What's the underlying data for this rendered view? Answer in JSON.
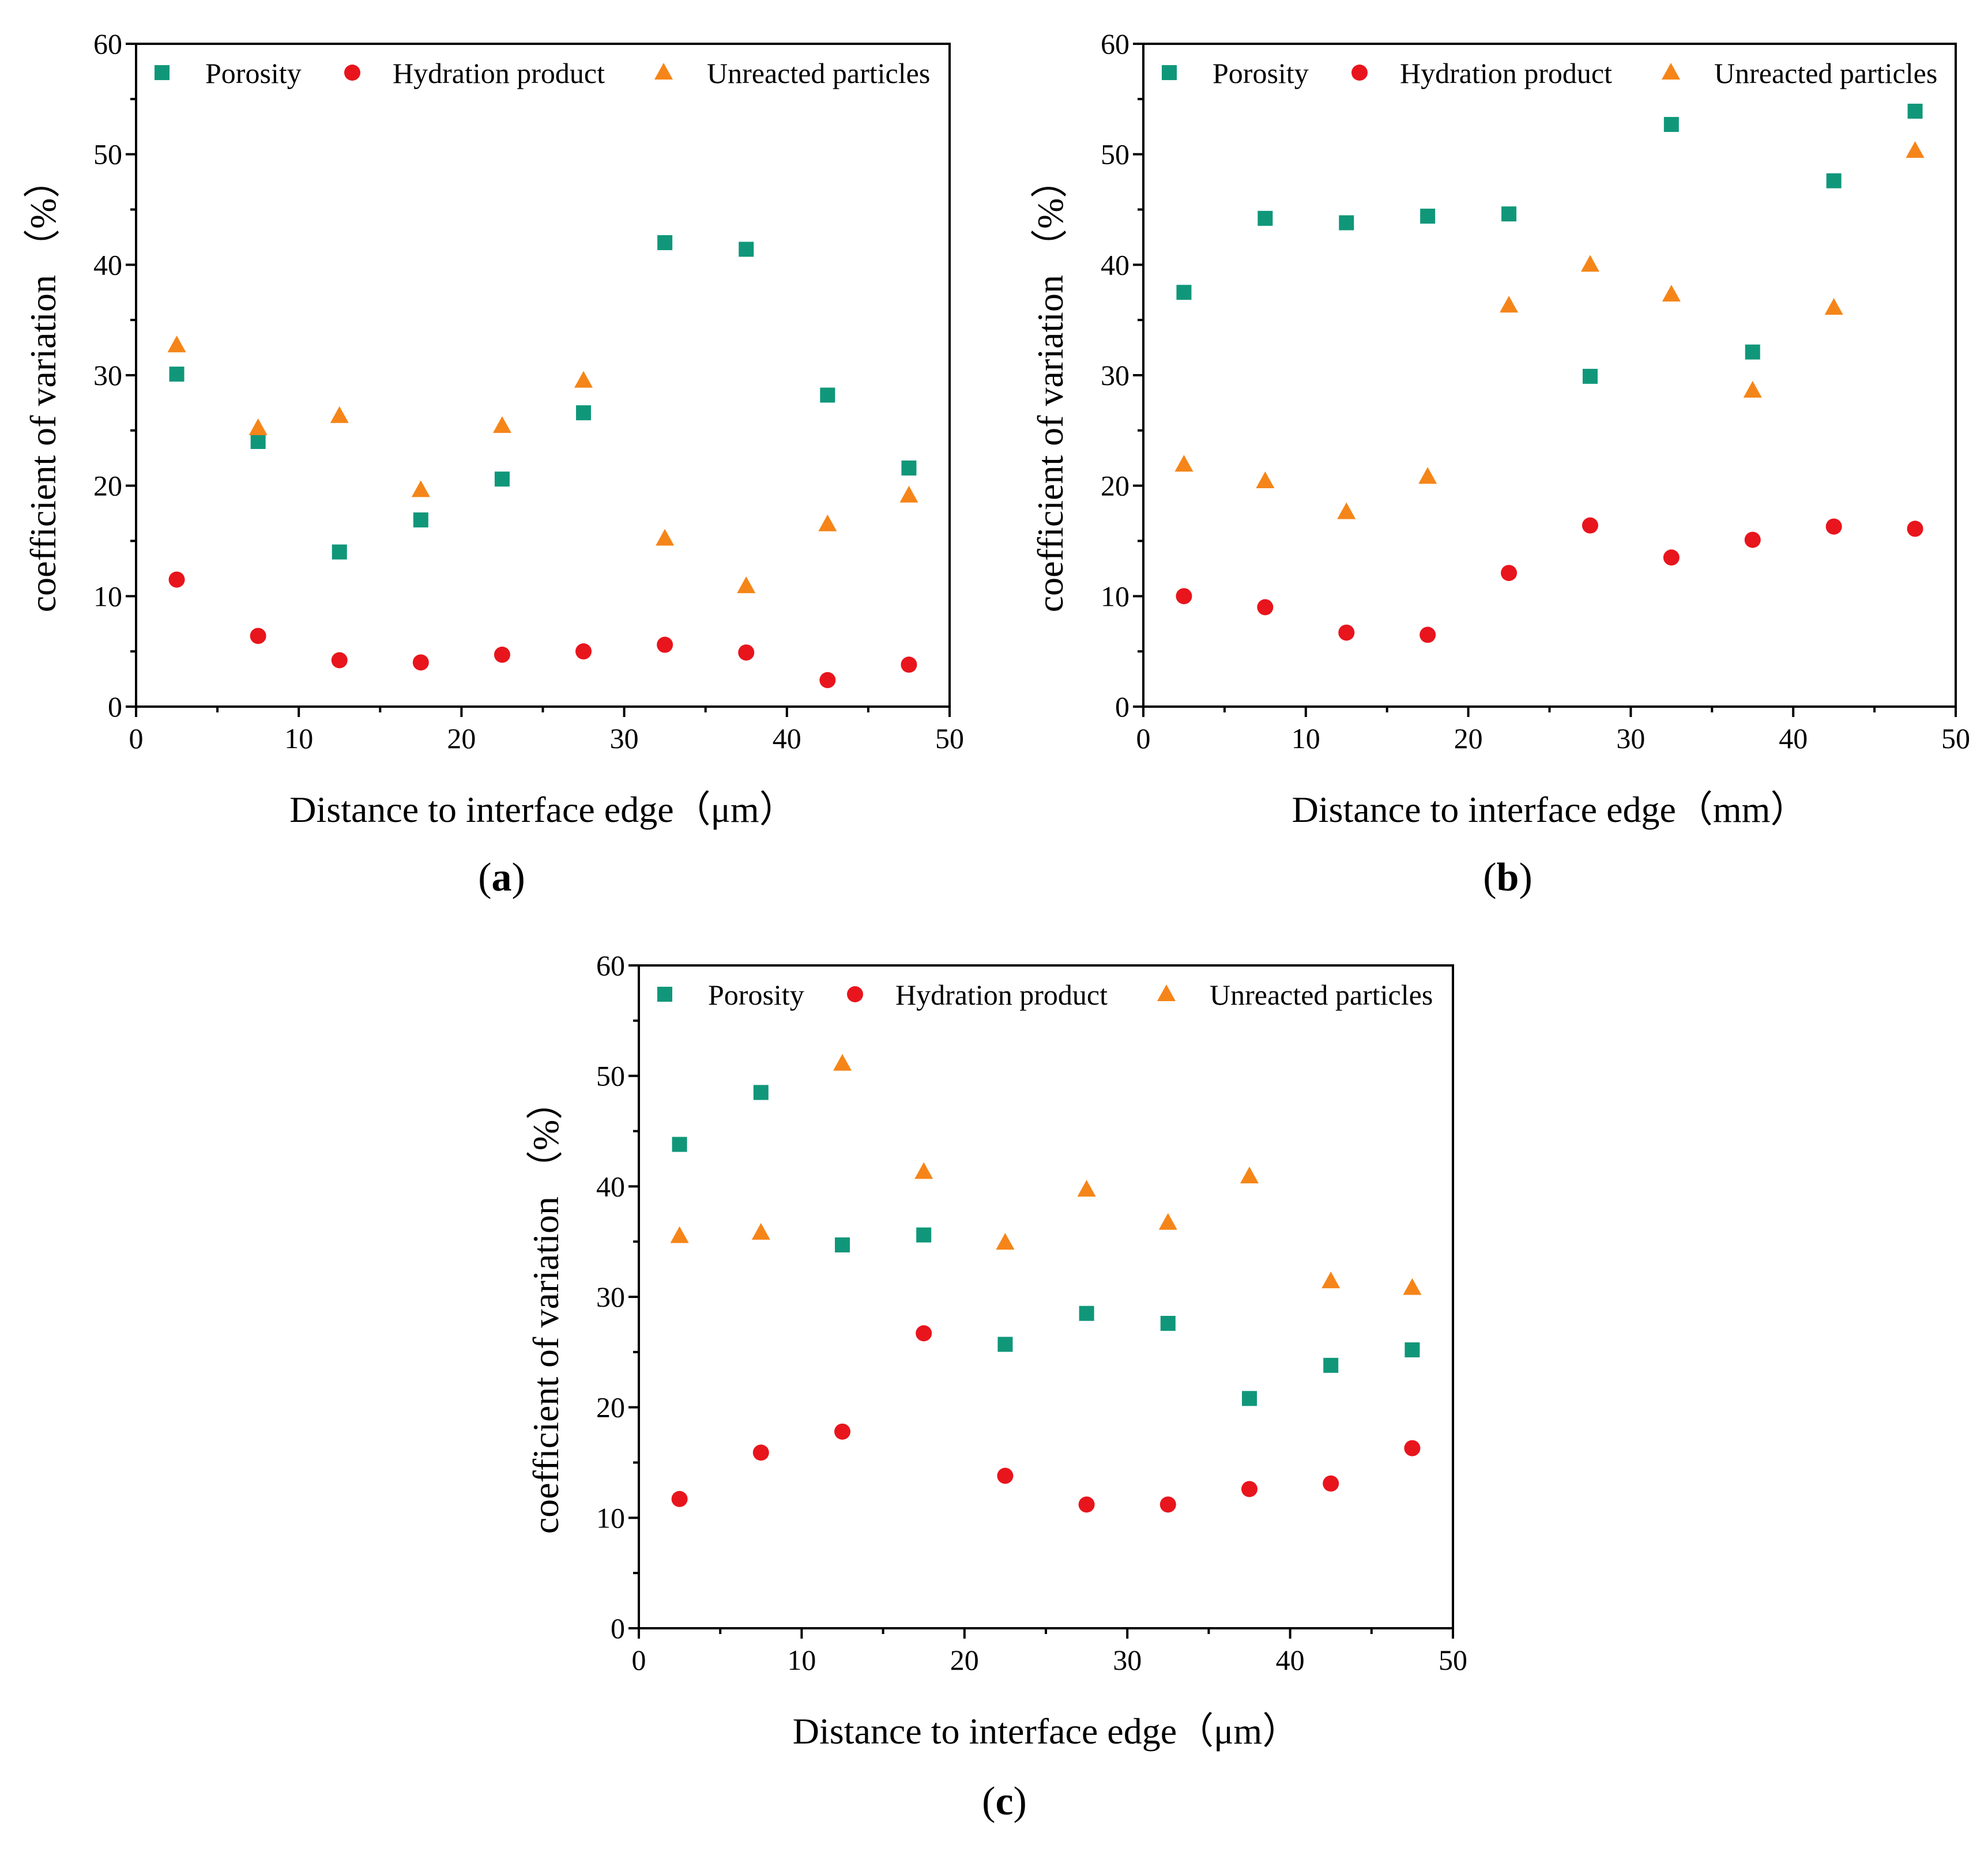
{
  "panel_layout": [
    "a",
    "b",
    "c"
  ],
  "chart_data": [
    {
      "id": "a",
      "type": "scatter",
      "panel_label": "a",
      "xlabel": "Distance to interface edge（μm）",
      "ylabel": "coefficient of variation （%）",
      "xlim": [
        0,
        50
      ],
      "ylim": [
        0,
        60
      ],
      "x_ticks": [
        0,
        10,
        20,
        30,
        40,
        50
      ],
      "y_ticks": [
        0,
        10,
        20,
        30,
        40,
        50,
        60
      ],
      "grid": false,
      "legend_position": "top",
      "x": [
        2.5,
        7.5,
        12.5,
        17.5,
        22.5,
        27.5,
        32.5,
        37.5,
        42.5,
        47.5
      ],
      "series": [
        {
          "name": "Porosity",
          "marker": "square",
          "color": "#10977a",
          "values": [
            30.1,
            24.0,
            14.0,
            16.9,
            20.6,
            26.6,
            42.0,
            41.4,
            28.2,
            21.6
          ]
        },
        {
          "name": "Hydration product",
          "marker": "circle",
          "color": "#e8151d",
          "values": [
            11.5,
            6.4,
            4.2,
            4.0,
            4.7,
            5.0,
            5.6,
            4.9,
            2.4,
            3.8
          ]
        },
        {
          "name": "Unreacted particles",
          "marker": "triangle",
          "color": "#f58519",
          "values": [
            32.7,
            25.2,
            26.3,
            19.6,
            25.4,
            29.5,
            15.2,
            10.9,
            16.5,
            19.1
          ]
        }
      ]
    },
    {
      "id": "b",
      "type": "scatter",
      "panel_label": "b",
      "xlabel": "Distance to interface edge（mm）",
      "ylabel": "coefficient of variation （%）",
      "xlim": [
        0,
        50
      ],
      "ylim": [
        0,
        60
      ],
      "x_ticks": [
        0,
        10,
        20,
        30,
        40,
        50
      ],
      "y_ticks": [
        0,
        10,
        20,
        30,
        40,
        50,
        60
      ],
      "grid": false,
      "legend_position": "top",
      "x": [
        2.5,
        7.5,
        12.5,
        17.5,
        22.5,
        27.5,
        32.5,
        37.5,
        42.5,
        47.5
      ],
      "series": [
        {
          "name": "Porosity",
          "marker": "square",
          "color": "#10977a",
          "values": [
            37.5,
            44.2,
            43.8,
            44.4,
            44.6,
            29.9,
            52.7,
            32.1,
            47.6,
            53.9
          ]
        },
        {
          "name": "Hydration product",
          "marker": "circle",
          "color": "#e8151d",
          "values": [
            10.0,
            9.0,
            6.7,
            6.5,
            12.1,
            16.4,
            13.5,
            15.1,
            16.3,
            16.1
          ]
        },
        {
          "name": "Unreacted particles",
          "marker": "triangle",
          "color": "#f58519",
          "values": [
            21.9,
            20.4,
            17.6,
            20.8,
            36.3,
            40.0,
            37.3,
            28.6,
            36.1,
            50.3
          ]
        }
      ]
    },
    {
      "id": "c",
      "type": "scatter",
      "panel_label": "c",
      "xlabel": "Distance to interface edge（μm）",
      "ylabel": "coefficient of variation （%）",
      "xlim": [
        0,
        50
      ],
      "ylim": [
        0,
        60
      ],
      "x_ticks": [
        0,
        10,
        20,
        30,
        40,
        50
      ],
      "y_ticks": [
        0,
        10,
        20,
        30,
        40,
        50,
        60
      ],
      "grid": false,
      "legend_position": "top",
      "x": [
        2.5,
        7.5,
        12.5,
        17.5,
        22.5,
        27.5,
        32.5,
        37.5,
        42.5,
        47.5
      ],
      "series": [
        {
          "name": "Porosity",
          "marker": "square",
          "color": "#10977a",
          "values": [
            43.8,
            48.5,
            34.7,
            35.6,
            25.7,
            28.5,
            27.6,
            20.8,
            23.8,
            25.2
          ]
        },
        {
          "name": "Hydration product",
          "marker": "circle",
          "color": "#e8151d",
          "values": [
            11.7,
            15.9,
            17.8,
            26.7,
            13.8,
            11.2,
            11.2,
            12.6,
            13.1,
            16.3
          ]
        },
        {
          "name": "Unreacted particles",
          "marker": "triangle",
          "color": "#f58519",
          "values": [
            35.5,
            35.8,
            51.1,
            41.3,
            34.9,
            39.7,
            36.7,
            40.9,
            31.4,
            30.8
          ]
        }
      ]
    }
  ]
}
